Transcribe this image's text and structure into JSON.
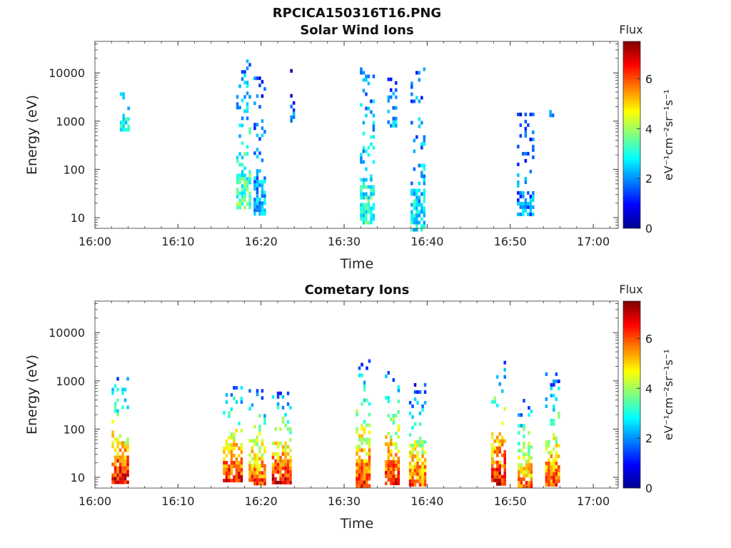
{
  "figure_title": "RPCICA150316T16.PNG",
  "chart_data": [
    {
      "type": "heatmap",
      "title": "Solar Wind Ions",
      "xlabel": "Time",
      "ylabel": "Energy (eV)",
      "x_range": [
        "16:00",
        "17:03"
      ],
      "x_ticks": [
        "16:00",
        "16:10",
        "16:20",
        "16:30",
        "16:40",
        "16:50",
        "17:00"
      ],
      "y_scale": "log",
      "y_range": [
        6,
        45000
      ],
      "y_ticks": [
        "10",
        "100",
        "1000",
        "10000"
      ],
      "colorbar": {
        "title": "Flux",
        "label": "eV⁻¹cm⁻²sr⁻¹s⁻¹",
        "range": [
          0,
          7.5
        ],
        "ticks": [
          "0",
          "2",
          "4",
          "6"
        ],
        "colormap": "jet"
      },
      "bursts": [
        {
          "minute": 3.5,
          "width": 1.0,
          "e_min": 700,
          "e_max": 11000,
          "level": 3.0
        },
        {
          "minute": 17.8,
          "width": 1.6,
          "e_min": 15,
          "e_max": 19000,
          "level": 3.5
        },
        {
          "minute": 19.8,
          "width": 1.4,
          "e_min": 12,
          "e_max": 10000,
          "level": 2.5
        },
        {
          "minute": 23.8,
          "width": 0.6,
          "e_min": 1000,
          "e_max": 12000,
          "level": 1.8
        },
        {
          "minute": 32.7,
          "width": 1.6,
          "e_min": 8,
          "e_max": 13000,
          "level": 3.2
        },
        {
          "minute": 35.8,
          "width": 1.2,
          "e_min": 800,
          "e_max": 8000,
          "level": 2.4
        },
        {
          "minute": 38.8,
          "width": 1.6,
          "e_min": 6,
          "e_max": 13000,
          "level": 2.8
        },
        {
          "minute": 51.8,
          "width": 2.0,
          "e_min": 12,
          "e_max": 1500,
          "level": 2.0
        },
        {
          "minute": 54.8,
          "width": 0.8,
          "e_min": 1400,
          "e_max": 1700,
          "level": 2.6
        }
      ]
    },
    {
      "type": "heatmap",
      "title": "Cometary Ions",
      "xlabel": "Time",
      "ylabel": "Energy (eV)",
      "x_range": [
        "16:00",
        "17:03"
      ],
      "x_ticks": [
        "16:00",
        "16:10",
        "16:20",
        "16:30",
        "16:40",
        "16:50",
        "17:00"
      ],
      "y_scale": "log",
      "y_range": [
        6,
        45000
      ],
      "y_ticks": [
        "10",
        "100",
        "1000",
        "10000"
      ],
      "colorbar": {
        "title": "Flux",
        "label": "eV⁻¹cm⁻²sr⁻¹s⁻¹",
        "range": [
          0,
          7.5
        ],
        "ticks": [
          "0",
          "2",
          "4",
          "6"
        ],
        "colormap": "jet"
      },
      "bursts": [
        {
          "minute": 3.0,
          "width": 2.0,
          "e_min": 8,
          "e_max": 1200,
          "level": 6.8
        },
        {
          "minute": 16.5,
          "width": 2.2,
          "e_min": 8,
          "e_max": 1100,
          "level": 6.6
        },
        {
          "minute": 19.5,
          "width": 2.0,
          "e_min": 8,
          "e_max": 800,
          "level": 6.2
        },
        {
          "minute": 22.5,
          "width": 2.4,
          "e_min": 8,
          "e_max": 600,
          "level": 6.8
        },
        {
          "minute": 32.3,
          "width": 1.8,
          "e_min": 7,
          "e_max": 2800,
          "level": 6.4
        },
        {
          "minute": 35.8,
          "width": 1.8,
          "e_min": 7,
          "e_max": 1600,
          "level": 6.6
        },
        {
          "minute": 38.8,
          "width": 2.0,
          "e_min": 7,
          "e_max": 900,
          "level": 6.0
        },
        {
          "minute": 48.5,
          "width": 1.6,
          "e_min": 7,
          "e_max": 2600,
          "level": 6.8
        },
        {
          "minute": 51.8,
          "width": 1.8,
          "e_min": 7,
          "e_max": 500,
          "level": 5.8
        },
        {
          "minute": 55.0,
          "width": 1.6,
          "e_min": 7,
          "e_max": 1500,
          "level": 6.2
        }
      ]
    }
  ]
}
